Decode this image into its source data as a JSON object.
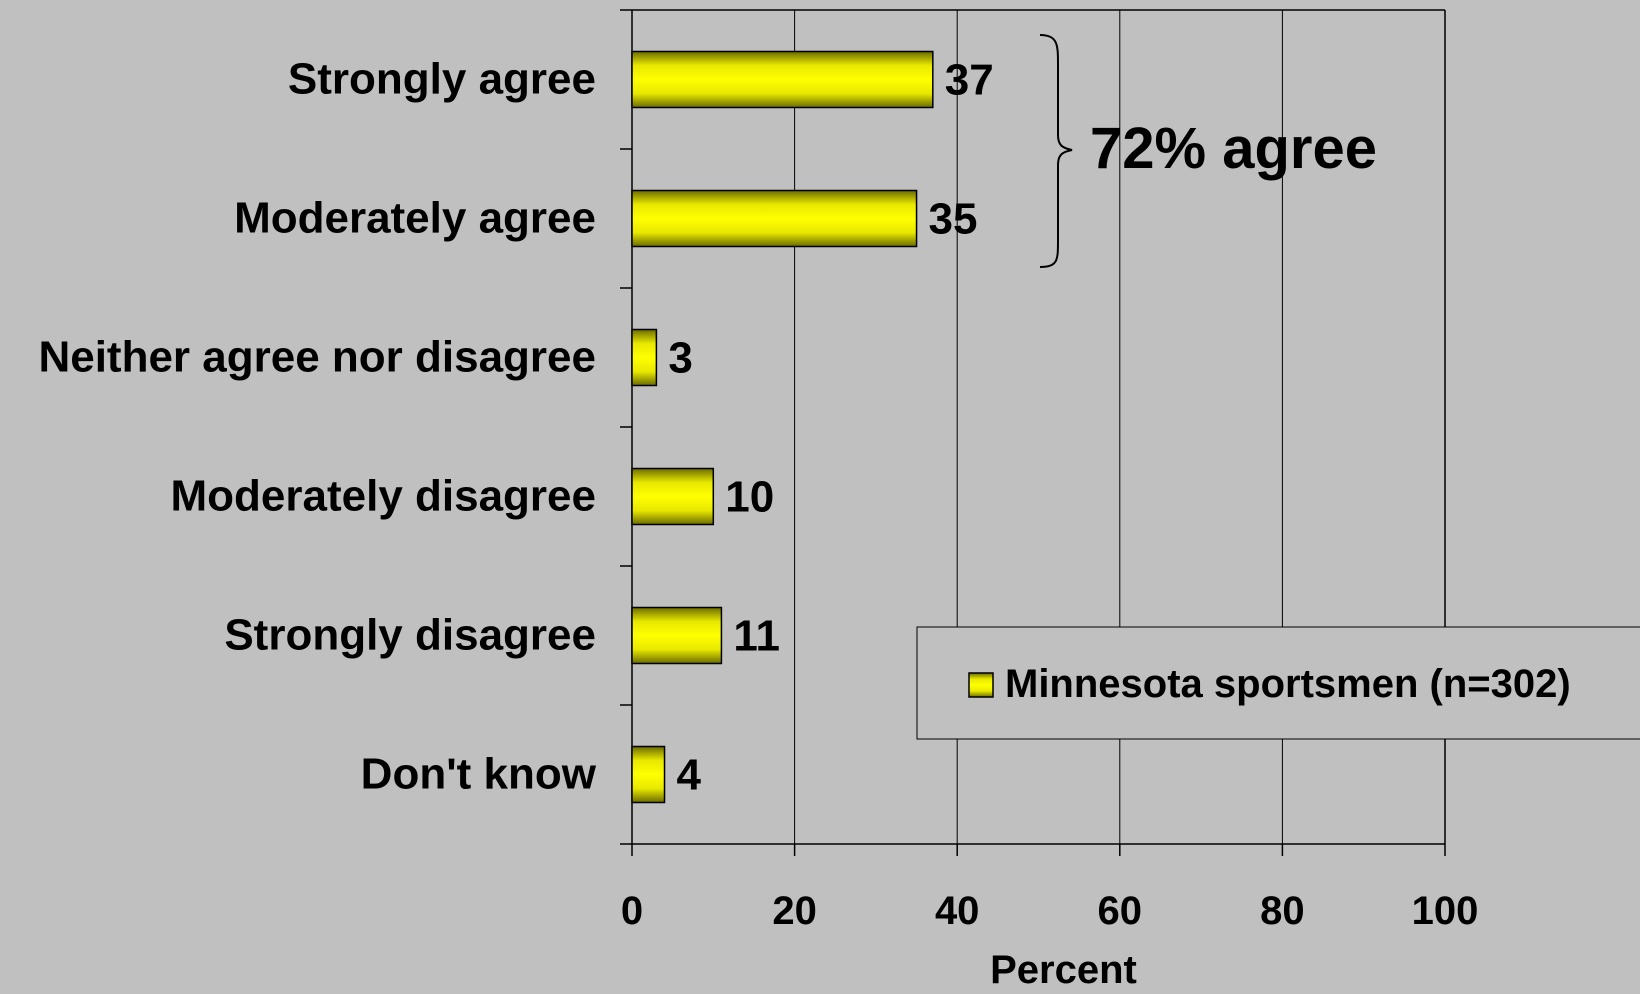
{
  "chart_data": {
    "type": "bar",
    "orientation": "horizontal",
    "categories": [
      "Strongly agree",
      "Moderately agree",
      "Neither agree nor disagree",
      "Moderately disagree",
      "Strongly disagree",
      "Don't know"
    ],
    "series": [
      {
        "name": "Minnesota sportsmen (n=302)",
        "values": [
          37,
          35,
          3,
          10,
          11,
          4
        ],
        "color": "#ffff00"
      }
    ],
    "xlabel": "Percent",
    "ylabel": "",
    "xlim": [
      0,
      100
    ],
    "xticks": [
      "0",
      "20",
      "40",
      "60",
      "80",
      "100"
    ],
    "grid": "vertical",
    "legend": "bottom-right",
    "annotations": [
      {
        "text": "72% agree",
        "spans": [
          "Strongly agree",
          "Moderately agree"
        ]
      }
    ],
    "colors": {
      "background": "#c0c0c0",
      "bar": "#ffff00",
      "bar_dark": "#6b6b00"
    }
  }
}
